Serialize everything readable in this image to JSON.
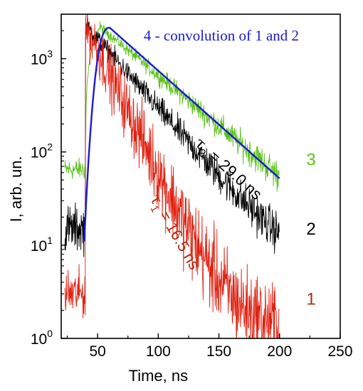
{
  "chart_data": {
    "type": "line",
    "title": "4 - convolution of 1 and 2",
    "xlabel": "Time, ns",
    "ylabel": "I, arb. un.",
    "xlim": [
      20,
      250
    ],
    "ylim": [
      1,
      3000
    ],
    "y_scale": "log",
    "x_ticks": [
      {
        "value": 50,
        "label": "50"
      },
      {
        "value": 100,
        "label": "100"
      },
      {
        "value": 150,
        "label": "150"
      },
      {
        "value": 200,
        "label": "200"
      },
      {
        "value": 250,
        "label": "250"
      }
    ],
    "y_ticks": [
      {
        "value": 1,
        "base": "10",
        "exp": "0"
      },
      {
        "value": 10,
        "base": "10",
        "exp": "1"
      },
      {
        "value": 100,
        "base": "10",
        "exp": "2"
      },
      {
        "value": 1000,
        "base": "10",
        "exp": "3"
      }
    ],
    "series": [
      {
        "id": "curve-3",
        "label": "3",
        "color": "#5cc21a",
        "start": 40,
        "peak": 2200,
        "rise": 12,
        "tau": 40,
        "pre": 65,
        "noise": 0.1,
        "end": 200
      },
      {
        "id": "curve-2",
        "label": "2",
        "color": "#000000",
        "start": 40,
        "peak": 2300,
        "tau": 29.0,
        "pre": 15,
        "noise": 0.18,
        "end": 200,
        "bg": 4
      },
      {
        "id": "curve-1",
        "label": "1",
        "color": "#e02010",
        "start": 40,
        "peak": 2300,
        "tau": 16.5,
        "pre": 3,
        "noise": 0.55,
        "end": 200,
        "bg": 1.3
      },
      {
        "id": "curve-4",
        "label": "4",
        "color": "#1a1ad0",
        "smooth": true,
        "start": 39,
        "peak": 2150,
        "peak_t": 60,
        "value_at_200": 52
      }
    ],
    "annotations": [
      {
        "id": "tau2",
        "sym": "τ",
        "sub": "2",
        "text": " = 29.0 ns",
        "color": "#000000",
        "x": 155,
        "y": 60,
        "angle": 42
      },
      {
        "id": "tau1",
        "sym": "τ",
        "sub": "1",
        "text": " = 16.5 ns",
        "color": "#b22d10",
        "x": 110,
        "y": 13,
        "angle": 60
      }
    ]
  }
}
